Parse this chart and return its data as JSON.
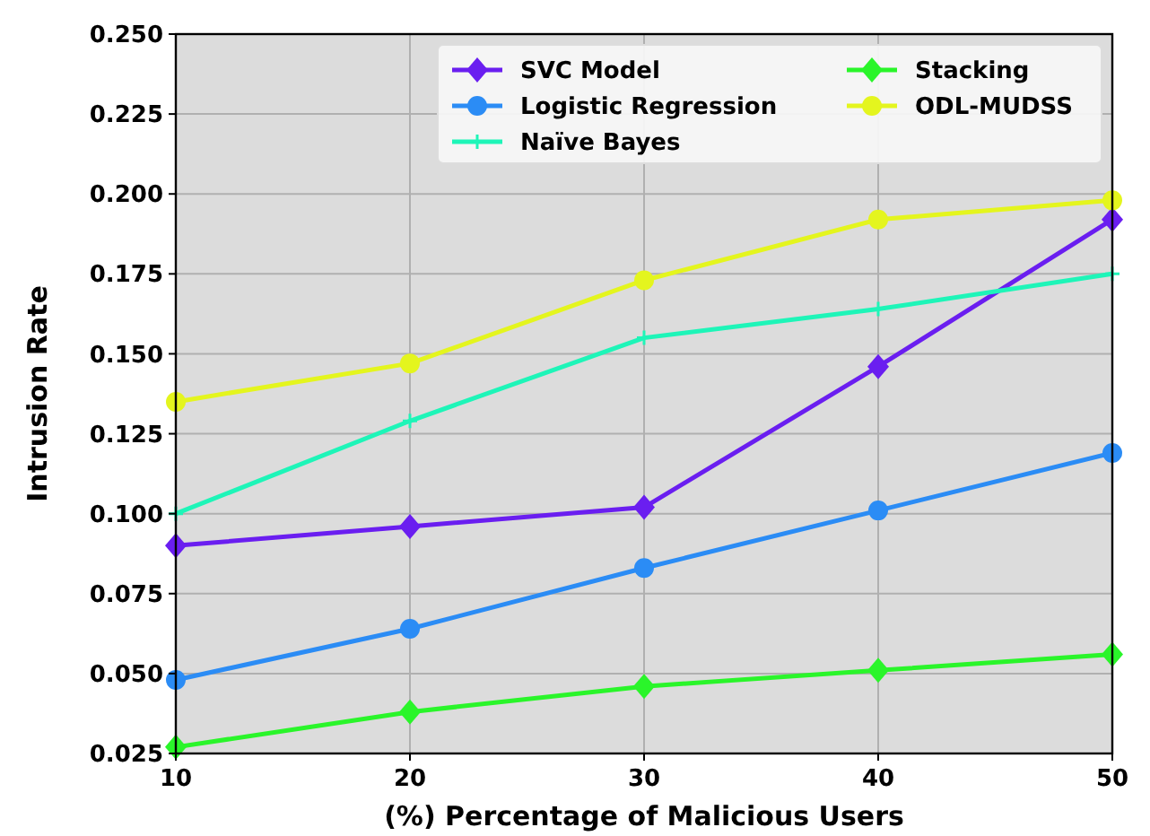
{
  "chart_data": {
    "type": "line",
    "xlabel": "(%) Percentage of Malicious Users",
    "ylabel": "Intrusion Rate",
    "x": [
      10,
      20,
      30,
      40,
      50
    ],
    "xlim": [
      10,
      50
    ],
    "xticks": [
      10,
      20,
      30,
      40,
      50
    ],
    "ylim": [
      0.025,
      0.25
    ],
    "yticks": [
      {
        "value": 0.025,
        "label": "0.025"
      },
      {
        "value": 0.05,
        "label": "0.050"
      },
      {
        "value": 0.075,
        "label": "0.075"
      },
      {
        "value": 0.1,
        "label": "0.100"
      },
      {
        "value": 0.125,
        "label": "0.125"
      },
      {
        "value": 0.15,
        "label": "0.150"
      },
      {
        "value": 0.175,
        "label": "0.175"
      },
      {
        "value": 0.2,
        "label": "0.200"
      },
      {
        "value": 0.225,
        "label": "0.225"
      },
      {
        "value": 0.25,
        "label": "0.250"
      }
    ],
    "grid": true,
    "legend": "top right",
    "series": [
      {
        "name": "SVC Model",
        "color": "#6a1ef0",
        "marker": "diamond",
        "values": [
          0.09,
          0.096,
          0.102,
          0.146,
          0.192
        ]
      },
      {
        "name": "Logistic Regression",
        "color": "#2b8cf5",
        "marker": "circle",
        "values": [
          0.048,
          0.064,
          0.083,
          0.101,
          0.119
        ]
      },
      {
        "name": "Naïve Bayes",
        "color": "#1ef5b8",
        "marker": "cross",
        "values": [
          0.1,
          0.129,
          0.155,
          0.164,
          0.175
        ]
      },
      {
        "name": "Stacking",
        "color": "#2af52a",
        "marker": "diamond",
        "values": [
          0.027,
          0.038,
          0.046,
          0.051,
          0.056
        ]
      },
      {
        "name": "ODL-MUDSS",
        "color": "#e4f51e",
        "marker": "circle",
        "values": [
          0.135,
          0.147,
          0.173,
          0.192,
          0.198
        ]
      }
    ]
  }
}
